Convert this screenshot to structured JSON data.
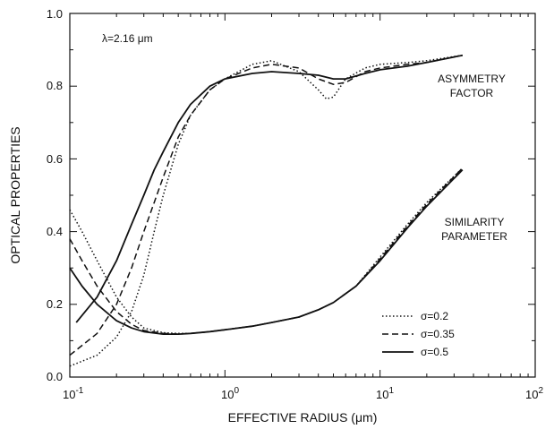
{
  "chart_data": {
    "type": "line",
    "xlabel": "EFFECTIVE RADIUS (μm)",
    "ylabel": "OPTICAL PROPERTIES",
    "xscale": "log",
    "xlim": [
      0.1,
      100
    ],
    "ylim": [
      0.0,
      1.0
    ],
    "x_ticks": [
      {
        "value": 0.1,
        "base": "10",
        "exp": "-1"
      },
      {
        "value": 1,
        "base": "10",
        "exp": "0"
      },
      {
        "value": 10,
        "base": "10",
        "exp": "1"
      },
      {
        "value": 100,
        "base": "10",
        "exp": "2"
      }
    ],
    "y_ticks": [
      "0.0",
      "0.2",
      "0.4",
      "0.6",
      "0.8",
      "1.0"
    ],
    "y_tick_values": [
      0.0,
      0.2,
      0.4,
      0.6,
      0.8,
      1.0
    ],
    "grid": false,
    "annotations": {
      "wavelength": "λ=2.16 μm",
      "asym_line1": "ASYMMETRY",
      "asym_line2": "FACTOR",
      "sim_line1": "SIMILARITY",
      "sim_line2": "PARAMETER"
    },
    "legend": {
      "placement": "lower-right",
      "entries": [
        {
          "label": "σ=0.2",
          "style": "dotted"
        },
        {
          "label": "σ=0.35",
          "style": "dashed"
        },
        {
          "label": "σ=0.5",
          "style": "solid"
        }
      ]
    },
    "series": [
      {
        "group": "asymmetry",
        "style": "dotted",
        "x": [
          0.1,
          0.15,
          0.2,
          0.25,
          0.3,
          0.35,
          0.4,
          0.5,
          0.6,
          0.8,
          1.0,
          1.5,
          2.0,
          3.0,
          4.0,
          4.5,
          5.0,
          6.0,
          8.0,
          10,
          15,
          20,
          34
        ],
        "y": [
          0.03,
          0.06,
          0.11,
          0.18,
          0.28,
          0.4,
          0.5,
          0.64,
          0.72,
          0.79,
          0.82,
          0.86,
          0.87,
          0.84,
          0.79,
          0.765,
          0.77,
          0.82,
          0.85,
          0.86,
          0.865,
          0.87,
          0.885
        ]
      },
      {
        "group": "asymmetry",
        "style": "dashed",
        "x": [
          0.1,
          0.15,
          0.2,
          0.25,
          0.3,
          0.35,
          0.4,
          0.5,
          0.6,
          0.8,
          1.0,
          1.5,
          2.0,
          3.0,
          4.0,
          5.0,
          6.0,
          8.0,
          10,
          15,
          20,
          34
        ],
        "y": [
          0.06,
          0.12,
          0.2,
          0.3,
          0.4,
          0.48,
          0.55,
          0.66,
          0.72,
          0.79,
          0.82,
          0.85,
          0.86,
          0.85,
          0.82,
          0.805,
          0.81,
          0.84,
          0.85,
          0.86,
          0.865,
          0.885
        ]
      },
      {
        "group": "asymmetry",
        "style": "solid",
        "x": [
          0.11,
          0.15,
          0.2,
          0.25,
          0.3,
          0.35,
          0.4,
          0.5,
          0.6,
          0.8,
          1.0,
          1.5,
          2.0,
          3.0,
          4.0,
          5.0,
          6.0,
          8.0,
          10,
          15,
          20,
          34
        ],
        "y": [
          0.15,
          0.22,
          0.32,
          0.42,
          0.5,
          0.57,
          0.62,
          0.7,
          0.75,
          0.8,
          0.82,
          0.835,
          0.84,
          0.835,
          0.83,
          0.82,
          0.82,
          0.835,
          0.845,
          0.855,
          0.865,
          0.885
        ]
      },
      {
        "group": "similarity",
        "style": "dotted",
        "x": [
          0.1,
          0.12,
          0.15,
          0.2,
          0.25,
          0.3,
          0.4,
          0.5,
          0.6,
          0.8,
          1.0,
          1.5,
          2.0,
          3.0,
          4.0,
          5.0,
          7.0,
          10,
          15,
          20,
          34
        ],
        "y": [
          0.46,
          0.4,
          0.32,
          0.22,
          0.165,
          0.135,
          0.122,
          0.12,
          0.12,
          0.125,
          0.13,
          0.14,
          0.15,
          0.165,
          0.185,
          0.205,
          0.25,
          0.33,
          0.42,
          0.48,
          0.575
        ]
      },
      {
        "group": "similarity",
        "style": "dashed",
        "x": [
          0.1,
          0.12,
          0.15,
          0.2,
          0.25,
          0.3,
          0.4,
          0.5,
          0.6,
          0.8,
          1.0,
          1.5,
          2.0,
          3.0,
          4.0,
          5.0,
          7.0,
          10,
          15,
          20,
          34
        ],
        "y": [
          0.38,
          0.32,
          0.25,
          0.18,
          0.145,
          0.128,
          0.12,
          0.118,
          0.12,
          0.125,
          0.13,
          0.14,
          0.15,
          0.165,
          0.185,
          0.205,
          0.25,
          0.325,
          0.415,
          0.475,
          0.575
        ]
      },
      {
        "group": "similarity",
        "style": "solid",
        "x": [
          0.1,
          0.12,
          0.15,
          0.2,
          0.25,
          0.3,
          0.4,
          0.5,
          0.6,
          0.8,
          1.0,
          1.5,
          2.0,
          3.0,
          4.0,
          5.0,
          7.0,
          10,
          15,
          20,
          34
        ],
        "y": [
          0.3,
          0.25,
          0.2,
          0.155,
          0.135,
          0.125,
          0.118,
          0.118,
          0.12,
          0.125,
          0.13,
          0.14,
          0.15,
          0.165,
          0.185,
          0.205,
          0.25,
          0.32,
          0.41,
          0.47,
          0.57
        ]
      }
    ]
  }
}
